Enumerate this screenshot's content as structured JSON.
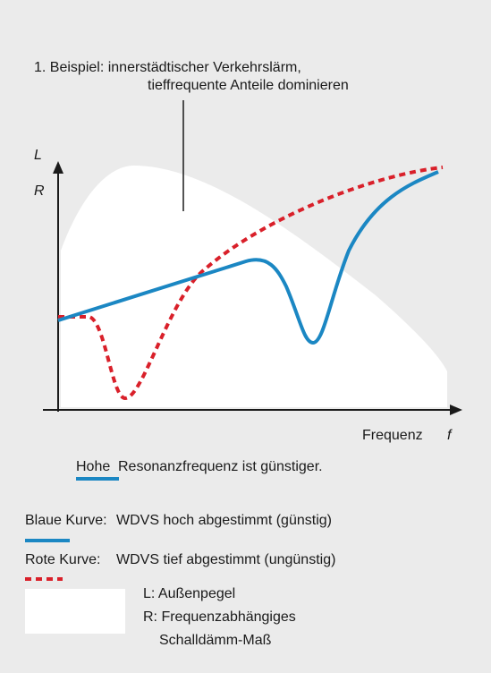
{
  "title": {
    "line1": "1. Beispiel: innerstädtischer Verkehrslärm,",
    "line2": "tieffrequente Anteile dominieren"
  },
  "axes": {
    "y_label_1": "L",
    "y_label_2": "R",
    "x_label": "Frequenz",
    "x_symbol": "f"
  },
  "caption": {
    "emphasis": "Hohe",
    "rest": "Resonanzfrequenz ist günstiger."
  },
  "legend": [
    {
      "label": "Blaue Kurve:",
      "text": "WDVS hoch abgestimmt (günstig)"
    },
    {
      "label": "Rote Kurve:",
      "text": "WDVS tief abgestimmt (ungünstig)"
    }
  ],
  "key": [
    "L: Außenpegel",
    "R: Frequenzabhängiges",
    "Schalldämm-Maß"
  ]
}
